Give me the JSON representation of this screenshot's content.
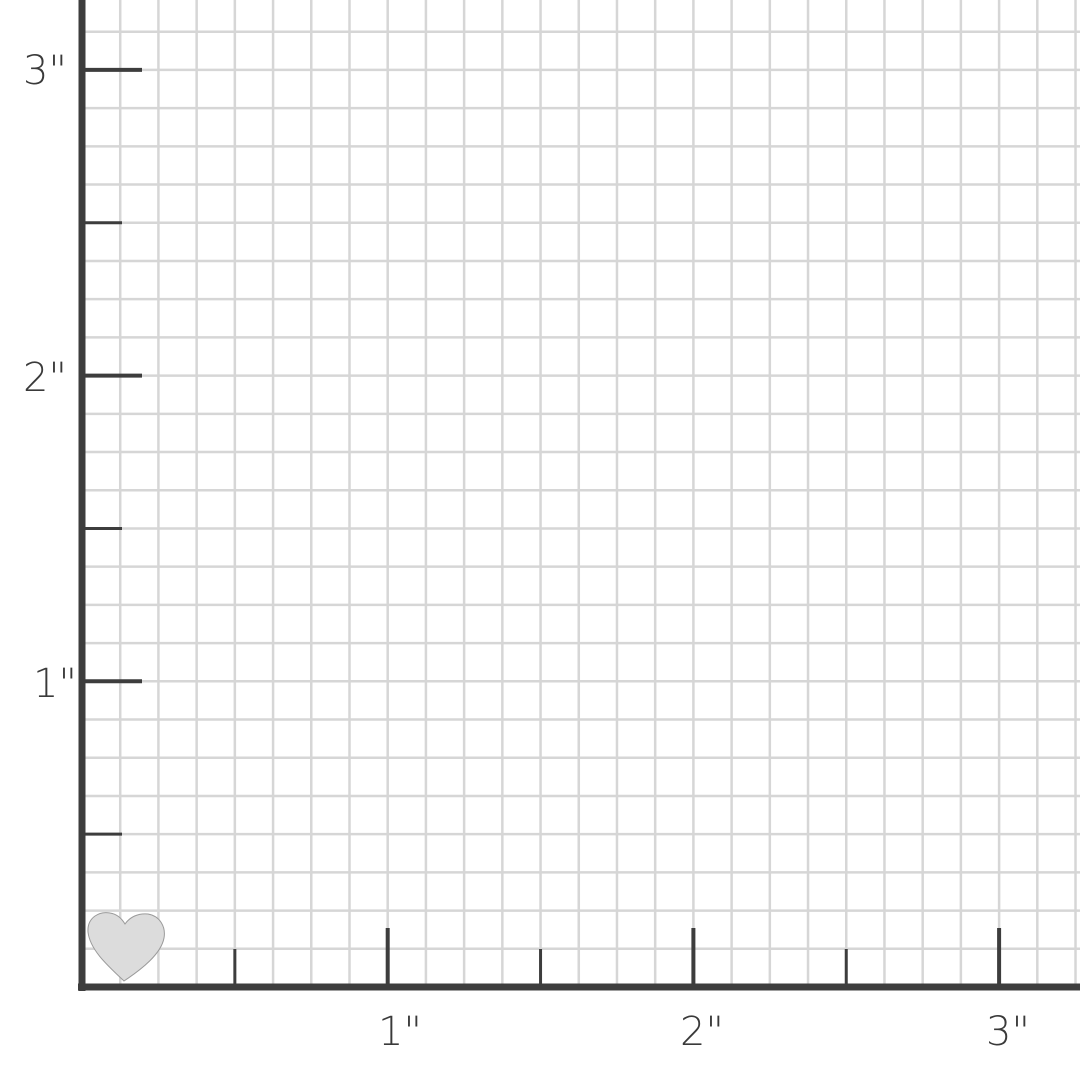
{
  "unit": "inch",
  "y_axis": {
    "labels": [
      "1\"",
      "2\"",
      "3\""
    ],
    "values": [
      1,
      2,
      3
    ]
  },
  "x_axis": {
    "labels": [
      "1\"",
      "2\"",
      "3\""
    ],
    "values": [
      1,
      2,
      3
    ]
  },
  "grid": {
    "subdivisions_per_inch": 8,
    "line_color": "#d6d6d6"
  },
  "axis_color": "#3d3d3d",
  "object": {
    "shape": "heart",
    "color": "#dcdcdc"
  }
}
